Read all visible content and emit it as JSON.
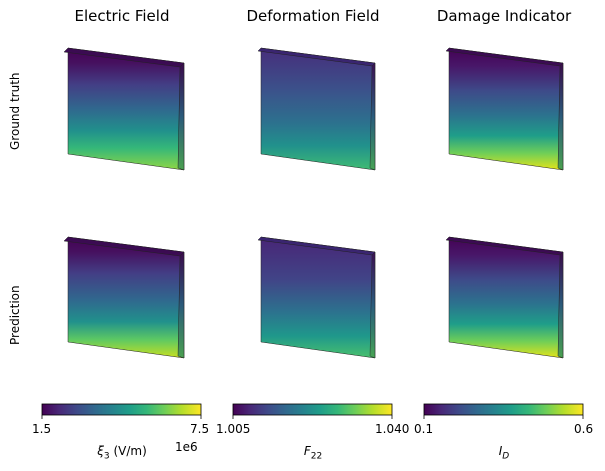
{
  "columns": [
    {
      "title": "Electric Field",
      "colorbar": {
        "min_label": "1.5",
        "max_label": "7.5",
        "offset_label": "1e6",
        "axis_label_main": "ξ",
        "axis_label_sub": "3",
        "axis_label_suffix": " (V/m)"
      }
    },
    {
      "title": "Deformation Field",
      "colorbar": {
        "min_label": "1.005",
        "max_label": "1.040",
        "axis_label_main": "F",
        "axis_label_sub": "22",
        "axis_label_suffix": ""
      }
    },
    {
      "title": "Damage Indicator",
      "colorbar": {
        "min_label": "0.1",
        "max_label": "0.6",
        "axis_label_main": "I",
        "axis_label_sub": "D",
        "axis_label_suffix": ""
      }
    }
  ],
  "rows": [
    {
      "label": "Ground truth"
    },
    {
      "label": "Prediction"
    }
  ],
  "colormap": "viridis",
  "colormap_stops": [
    "#440154",
    "#482878",
    "#3e4a89",
    "#31688e",
    "#26828e",
    "#1f9e89",
    "#35b779",
    "#6ece58",
    "#b5de2b",
    "#fde725"
  ]
}
